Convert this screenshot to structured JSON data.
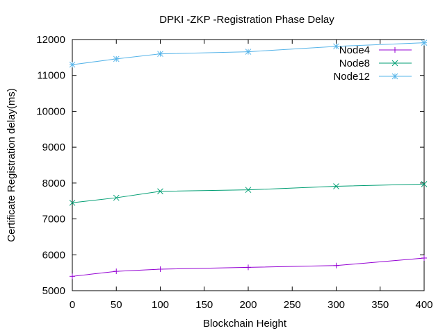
{
  "chart_data": {
    "type": "line",
    "title": "DPKI -ZKP -Registration Phase Delay",
    "xlabel": "Blockchain Height",
    "ylabel": "Certificate Registration delay(ms)",
    "xlim": [
      0,
      400
    ],
    "ylim": [
      5000,
      12000
    ],
    "x_ticks": [
      0,
      50,
      100,
      150,
      200,
      250,
      300,
      350,
      400
    ],
    "y_ticks": [
      5000,
      6000,
      7000,
      8000,
      9000,
      10000,
      11000,
      12000
    ],
    "grid": false,
    "legend_position": "top-right",
    "x": [
      0,
      50,
      100,
      200,
      300,
      400
    ],
    "series": [
      {
        "name": "Node4",
        "marker": "plus",
        "color": "#9400d3",
        "values": [
          5400,
          5540,
          5600,
          5650,
          5700,
          5910
        ]
      },
      {
        "name": "Node8",
        "marker": "cross",
        "color": "#009e73",
        "values": [
          7450,
          7590,
          7770,
          7810,
          7910,
          7970
        ]
      },
      {
        "name": "Node12",
        "marker": "star",
        "color": "#56b4e9",
        "values": [
          11300,
          11460,
          11600,
          11660,
          11810,
          11910
        ]
      }
    ]
  }
}
